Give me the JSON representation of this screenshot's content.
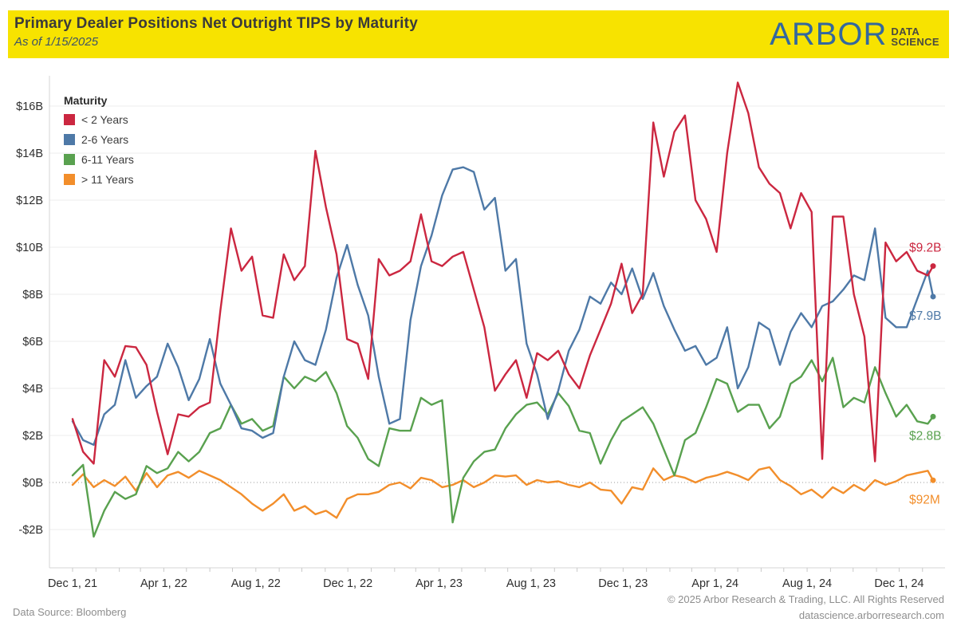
{
  "header": {
    "title": "Primary Dealer Positions Net Outright TIPS by Maturity",
    "subtitle": "As of 1/15/2025",
    "logo": {
      "word": "ARBOR",
      "line1": "DATA",
      "line2": "SCIENCE"
    }
  },
  "legend": {
    "title": "Maturity",
    "items": [
      {
        "label": "< 2 Years",
        "color": "#cb2740"
      },
      {
        "label": "2-6 Years",
        "color": "#4e79a7"
      },
      {
        "label": "6-11 Years",
        "color": "#59a14f"
      },
      {
        "label": "> 11 Years",
        "color": "#f28e2b"
      }
    ]
  },
  "footer": {
    "source": "Data Source: Bloomberg",
    "copyright": "© 2025 Arbor Research & Trading, LLC. All Rights Reserved",
    "site": "datascience.arborresearch.com"
  },
  "colors": {
    "header_band": "#f7e300",
    "gridline": "#ececec",
    "zero_line": "#9a9a9a",
    "axis_line": "#d6d6d6",
    "tick_text": "#2e2e2e"
  },
  "chart_data": {
    "type": "line",
    "title": "Primary Dealer Positions Net Outright TIPS by Maturity",
    "ylabel": "",
    "xlabel": "",
    "ylim": [
      -3.2,
      17.3
    ],
    "grid": true,
    "legend_position": "top-left",
    "start_date": "2021-12-01",
    "interval_days": 14,
    "end_date": "2025-01-15",
    "y_ticks": [
      {
        "value": 16,
        "label": "$16B"
      },
      {
        "value": 14,
        "label": "$14B"
      },
      {
        "value": 12,
        "label": "$12B"
      },
      {
        "value": 10,
        "label": "$10B"
      },
      {
        "value": 8,
        "label": "$8B"
      },
      {
        "value": 6,
        "label": "$6B"
      },
      {
        "value": 4,
        "label": "$4B"
      },
      {
        "value": 2,
        "label": "$2B"
      },
      {
        "value": 0,
        "label": "$0B"
      },
      {
        "value": -2,
        "label": "-$2B"
      }
    ],
    "x_ticks": [
      {
        "day": 0,
        "label": "Dec 1, 21"
      },
      {
        "day": 121,
        "label": "Apr 1, 22"
      },
      {
        "day": 243,
        "label": "Aug 1, 22"
      },
      {
        "day": 365,
        "label": "Dec 1, 22"
      },
      {
        "day": 486,
        "label": "Apr 1, 23"
      },
      {
        "day": 608,
        "label": "Aug 1, 23"
      },
      {
        "day": 730,
        "label": "Dec 1, 23"
      },
      {
        "day": 852,
        "label": "Apr 1, 24"
      },
      {
        "day": 974,
        "label": "Aug 1, 24"
      },
      {
        "day": 1096,
        "label": "Dec 1, 24"
      }
    ],
    "series": [
      {
        "name": "< 2 Years",
        "color": "#cb2740",
        "end_label": "$9.2B",
        "end_label_side": "above",
        "values": [
          2.7,
          1.3,
          0.8,
          5.2,
          4.5,
          5.8,
          5.75,
          5.0,
          3.0,
          1.2,
          2.9,
          2.8,
          3.2,
          3.4,
          7.3,
          10.8,
          9.0,
          9.6,
          7.1,
          7.0,
          9.7,
          8.6,
          9.2,
          14.1,
          11.7,
          9.7,
          6.1,
          5.9,
          4.4,
          9.5,
          8.8,
          9.0,
          9.4,
          11.4,
          9.4,
          9.2,
          9.6,
          9.8,
          8.2,
          6.6,
          3.9,
          4.6,
          5.2,
          3.6,
          5.5,
          5.2,
          5.6,
          4.6,
          4.0,
          5.4,
          6.5,
          7.6,
          9.3,
          7.2,
          8.0,
          15.3,
          13.0,
          14.9,
          15.6,
          12.0,
          11.2,
          9.8,
          14.0,
          17.0,
          15.7,
          13.4,
          12.7,
          12.3,
          10.8,
          12.3,
          11.5,
          1.0,
          11.3,
          11.3,
          8.0,
          6.2,
          0.9,
          10.2,
          9.4,
          9.8,
          9.0,
          8.8,
          9.2
        ]
      },
      {
        "name": "2-6 Years",
        "color": "#4e79a7",
        "end_label": "$7.9B",
        "end_label_side": "below",
        "values": [
          2.6,
          1.8,
          1.6,
          2.9,
          3.3,
          5.2,
          3.6,
          4.1,
          4.5,
          5.9,
          4.9,
          3.5,
          4.4,
          6.1,
          4.2,
          3.3,
          2.3,
          2.2,
          1.9,
          2.1,
          4.5,
          6.0,
          5.2,
          5.0,
          6.5,
          8.7,
          10.1,
          8.4,
          7.1,
          4.5,
          2.5,
          2.7,
          6.9,
          9.2,
          10.5,
          12.2,
          13.3,
          13.4,
          13.2,
          11.6,
          12.1,
          9.0,
          9.5,
          5.9,
          4.6,
          2.7,
          3.9,
          5.6,
          6.5,
          7.9,
          7.6,
          8.5,
          8.0,
          9.1,
          7.8,
          8.9,
          7.5,
          6.5,
          5.6,
          5.8,
          5.0,
          5.3,
          6.6,
          4.0,
          4.9,
          6.8,
          6.5,
          5.0,
          6.4,
          7.2,
          6.6,
          7.5,
          7.7,
          8.2,
          8.8,
          8.6,
          10.8,
          7.0,
          6.6,
          6.6,
          7.8,
          9.0,
          7.9
        ]
      },
      {
        "name": "6-11 Years",
        "color": "#59a14f",
        "end_label": "$2.8B",
        "end_label_side": "below",
        "values": [
          0.3,
          0.75,
          -2.3,
          -1.2,
          -0.4,
          -0.7,
          -0.5,
          0.7,
          0.4,
          0.6,
          1.3,
          0.9,
          1.3,
          2.1,
          2.3,
          3.3,
          2.5,
          2.7,
          2.2,
          2.4,
          4.5,
          4.0,
          4.5,
          4.3,
          4.7,
          3.8,
          2.4,
          1.9,
          1.0,
          0.7,
          2.3,
          2.2,
          2.2,
          3.6,
          3.3,
          3.5,
          -1.7,
          0.2,
          0.9,
          1.3,
          1.4,
          2.3,
          2.9,
          3.3,
          3.4,
          2.9,
          3.8,
          3.25,
          2.2,
          2.1,
          0.8,
          1.8,
          2.6,
          2.9,
          3.2,
          2.5,
          1.4,
          0.3,
          1.8,
          2.1,
          3.2,
          4.4,
          4.2,
          3.0,
          3.3,
          3.3,
          2.3,
          2.8,
          4.2,
          4.5,
          5.2,
          4.3,
          5.3,
          3.2,
          3.6,
          3.4,
          4.9,
          3.8,
          2.8,
          3.3,
          2.6,
          2.5,
          2.8
        ]
      },
      {
        "name": "> 11 Years",
        "color": "#f28e2b",
        "end_label": "$92M",
        "end_label_side": "below",
        "values": [
          -0.1,
          0.35,
          -0.2,
          0.1,
          -0.15,
          0.25,
          -0.35,
          0.4,
          -0.2,
          0.3,
          0.45,
          0.2,
          0.5,
          0.3,
          0.1,
          -0.2,
          -0.5,
          -0.9,
          -1.2,
          -0.9,
          -0.5,
          -1.2,
          -1.0,
          -1.35,
          -1.2,
          -1.5,
          -0.7,
          -0.5,
          -0.5,
          -0.4,
          -0.1,
          0.0,
          -0.25,
          0.2,
          0.1,
          -0.2,
          -0.1,
          0.1,
          -0.2,
          0.0,
          0.3,
          0.25,
          0.3,
          -0.1,
          0.1,
          0.0,
          0.05,
          -0.1,
          -0.2,
          0.0,
          -0.3,
          -0.35,
          -0.9,
          -0.2,
          -0.3,
          0.6,
          0.1,
          0.3,
          0.2,
          0.0,
          0.2,
          0.3,
          0.45,
          0.3,
          0.1,
          0.55,
          0.65,
          0.1,
          -0.15,
          -0.5,
          -0.3,
          -0.65,
          -0.2,
          -0.45,
          -0.1,
          -0.35,
          0.1,
          -0.1,
          0.05,
          0.3,
          0.4,
          0.5,
          0.092
        ]
      }
    ]
  }
}
